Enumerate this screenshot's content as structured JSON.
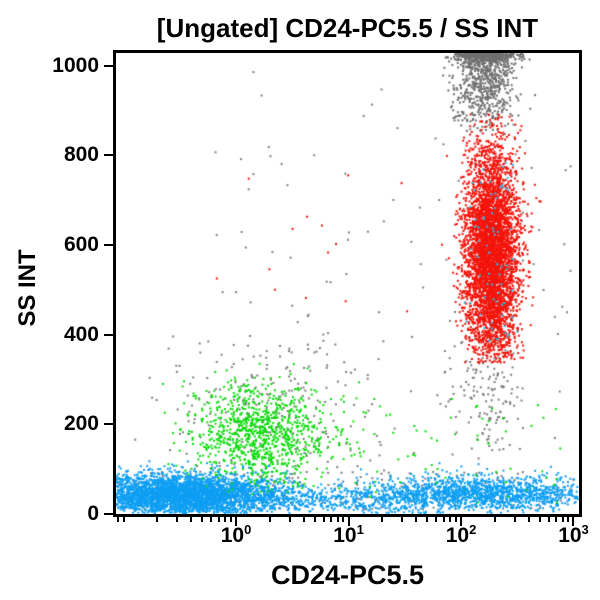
{
  "title": "[Ungated] CD24-PC5.5 / SS INT",
  "chart_data": {
    "type": "scatter",
    "subtype": "flow-cytometry-dot-plot",
    "title": "[Ungated] CD24-PC5.5 / SS INT",
    "xlabel": "CD24-PC5.5",
    "ylabel": "SS INT",
    "x_scale": "log10",
    "x_units": "log10 of CD24-PC5.5 intensity",
    "x_range_log": [
      -1.067,
      3.049
    ],
    "y_scale": "linear",
    "y_range": [
      0,
      1028
    ],
    "y_ticks": [
      0,
      200,
      400,
      600,
      800,
      1000
    ],
    "y_tick_labels": [
      "0",
      "200",
      "400",
      "600",
      "800",
      "1000"
    ],
    "x_major_ticks": [
      {
        "log": 0,
        "base": "10",
        "exp": "0"
      },
      {
        "log": 1,
        "base": "10",
        "exp": "1"
      },
      {
        "log": 2,
        "base": "10",
        "exp": "2"
      },
      {
        "log": 3,
        "base": "10",
        "exp": "3"
      }
    ],
    "minor_tick_mantissas": [
      2,
      3,
      4,
      5,
      6,
      7,
      8,
      9
    ],
    "grid": false,
    "legend": null,
    "seed": 1337,
    "dot_size": 2,
    "colors": {
      "blue_population": "#0d9ef3",
      "green_population": "#05dc05",
      "red_population": "#f3140b",
      "gray_population": "#777777",
      "axis": "#000000",
      "background": "#ffffff"
    },
    "populations": [
      {
        "name": "gray-ssc-max-pileup",
        "color": "#6f6f6f",
        "n": 1100,
        "x": {
          "dist": "normal",
          "mu": 2.21,
          "sigma": 0.14,
          "clip": [
            1.78,
            2.84
          ]
        },
        "y": {
          "dist": "normal",
          "mu": 1005,
          "sigma": 80,
          "clip": [
            852,
            1026
          ],
          "pile": 26
        }
      },
      {
        "name": "gray-halo-around-green",
        "color": "#7d7d7d",
        "n": 240,
        "x": {
          "dist": "normal",
          "mu": 0.3,
          "sigma": 0.5,
          "clip": [
            -1.05,
            1.6
          ]
        },
        "y": {
          "dist": "normal",
          "mu": 230,
          "sigma": 115,
          "clip": [
            10,
            540
          ]
        }
      },
      {
        "name": "gray-below-red-column",
        "color": "#7d7d7d",
        "n": 150,
        "x": {
          "dist": "normal",
          "mu": 2.2,
          "sigma": 0.17,
          "clip": [
            1.7,
            2.7
          ]
        },
        "y": {
          "dist": "normal",
          "mu": 265,
          "sigma": 95,
          "clip": [
            60,
            430
          ]
        }
      },
      {
        "name": "gray-sparse-mid",
        "color": "#808080",
        "n": 60,
        "x": {
          "dist": "uniform",
          "range": [
            -0.3,
            1.6
          ]
        },
        "y": {
          "dist": "uniform",
          "range": [
            60,
            1010
          ]
        }
      },
      {
        "name": "gray-sparse-right",
        "color": "#808080",
        "n": 50,
        "x": {
          "dist": "uniform",
          "range": [
            1.55,
            3.0
          ]
        },
        "y": {
          "dist": "uniform",
          "range": [
            120,
            880
          ]
        }
      },
      {
        "name": "gray-bottom-band",
        "color": "#7d7d7d",
        "n": 130,
        "x": {
          "dist": "uniform",
          "range": [
            -1.05,
            3.0
          ]
        },
        "y": {
          "dist": "uniform",
          "range": [
            8,
            95
          ]
        }
      },
      {
        "name": "red-granulocytes-main",
        "color": "#f3140b",
        "n": 4600,
        "x": {
          "dist": "normal",
          "mu": 2.27,
          "sigma": 0.12,
          "clip": [
            1.78,
            2.93
          ]
        },
        "y": {
          "dist": "normal",
          "mu": 580,
          "sigma": 118,
          "clip": [
            336,
            893
          ]
        }
      },
      {
        "name": "red-strays",
        "color": "#f3140b",
        "n": 14,
        "x": {
          "dist": "uniform",
          "range": [
            -0.2,
            1.55
          ]
        },
        "y": {
          "dist": "uniform",
          "range": [
            430,
            770
          ]
        }
      },
      {
        "name": "blue-debris-left",
        "color": "#0d9ef3",
        "n": 3400,
        "x": {
          "dist": "normal",
          "mu": -0.5,
          "sigma": 0.45,
          "clip": [
            -1.06,
            0.6
          ]
        },
        "y": {
          "dist": "normal",
          "mu": 42,
          "sigma": 24,
          "clip": [
            2,
            135
          ]
        }
      },
      {
        "name": "blue-debris-mid",
        "color": "#0d9ef3",
        "n": 500,
        "x": {
          "dist": "uniform",
          "range": [
            0.2,
            1.7
          ]
        },
        "y": {
          "dist": "normal",
          "mu": 32,
          "sigma": 16,
          "clip": [
            2,
            90
          ]
        }
      },
      {
        "name": "blue-debris-right",
        "color": "#0d9ef3",
        "n": 1400,
        "x": {
          "dist": "normal",
          "mu": 2.2,
          "sigma": 0.5,
          "clip": [
            0.9,
            3.04
          ]
        },
        "y": {
          "dist": "normal",
          "mu": 44,
          "sigma": 20,
          "clip": [
            2,
            115
          ]
        }
      },
      {
        "name": "blue-specks-in-red",
        "color": "#2ab8e8",
        "n": 70,
        "x": {
          "dist": "normal",
          "mu": 2.27,
          "sigma": 0.12,
          "clip": [
            1.9,
            2.6
          ]
        },
        "y": {
          "dist": "uniform",
          "range": [
            380,
            790
          ]
        }
      },
      {
        "name": "green-lymphocytes-main",
        "color": "#05dc05",
        "n": 950,
        "x": {
          "dist": "normal",
          "mu": 0.22,
          "sigma": 0.31,
          "clip": [
            -0.75,
            1.35
          ]
        },
        "y": {
          "dist": "normal",
          "mu": 180,
          "sigma": 57,
          "clip": [
            38,
            335
          ]
        }
      },
      {
        "name": "green-scatter-right",
        "color": "#05dc05",
        "n": 75,
        "x": {
          "dist": "uniform",
          "range": [
            0.5,
            2.97
          ]
        },
        "y": {
          "dist": "uniform",
          "range": [
            25,
            265
          ]
        }
      }
    ]
  }
}
